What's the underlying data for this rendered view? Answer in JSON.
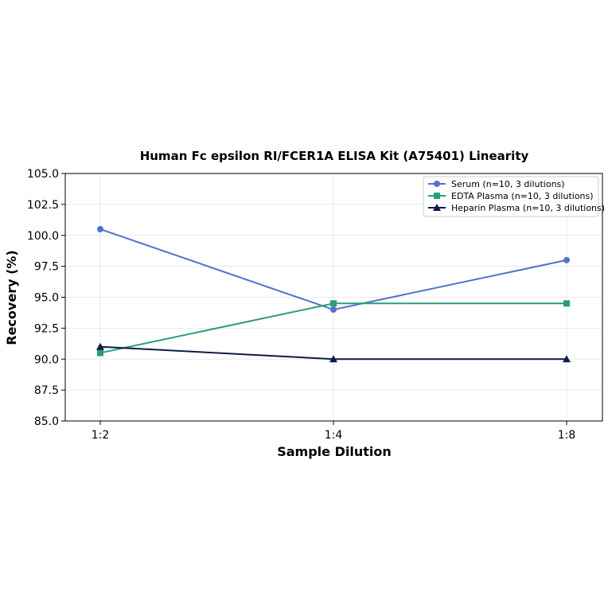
{
  "chart_data": {
    "type": "line",
    "title": "Human Fc epsilon RI/FCER1A ELISA Kit (A75401) Linearity",
    "xlabel": "Sample Dilution",
    "ylabel": "Recovery (%)",
    "categories": [
      "1:2",
      "1:4",
      "1:8"
    ],
    "ylim": [
      85.0,
      105.0
    ],
    "yticks": [
      "85.0",
      "87.5",
      "90.0",
      "92.5",
      "95.0",
      "97.5",
      "100.0",
      "102.5",
      "105.0"
    ],
    "grid": true,
    "legend_position": "top-right",
    "series": [
      {
        "name": "Serum (n=10, 3 dilutions)",
        "values": [
          100.5,
          94.0,
          98.0
        ],
        "color": "#5470d0",
        "marker": "circle"
      },
      {
        "name": "EDTA Plasma (n=10, 3 dilutions)",
        "values": [
          90.5,
          94.5,
          94.5
        ],
        "color": "#2a9d78",
        "marker": "square"
      },
      {
        "name": "Heparin Plasma (n=10, 3 dilutions)",
        "values": [
          91.0,
          90.0,
          90.0
        ],
        "color": "#0e1b45",
        "marker": "triangle"
      }
    ]
  }
}
